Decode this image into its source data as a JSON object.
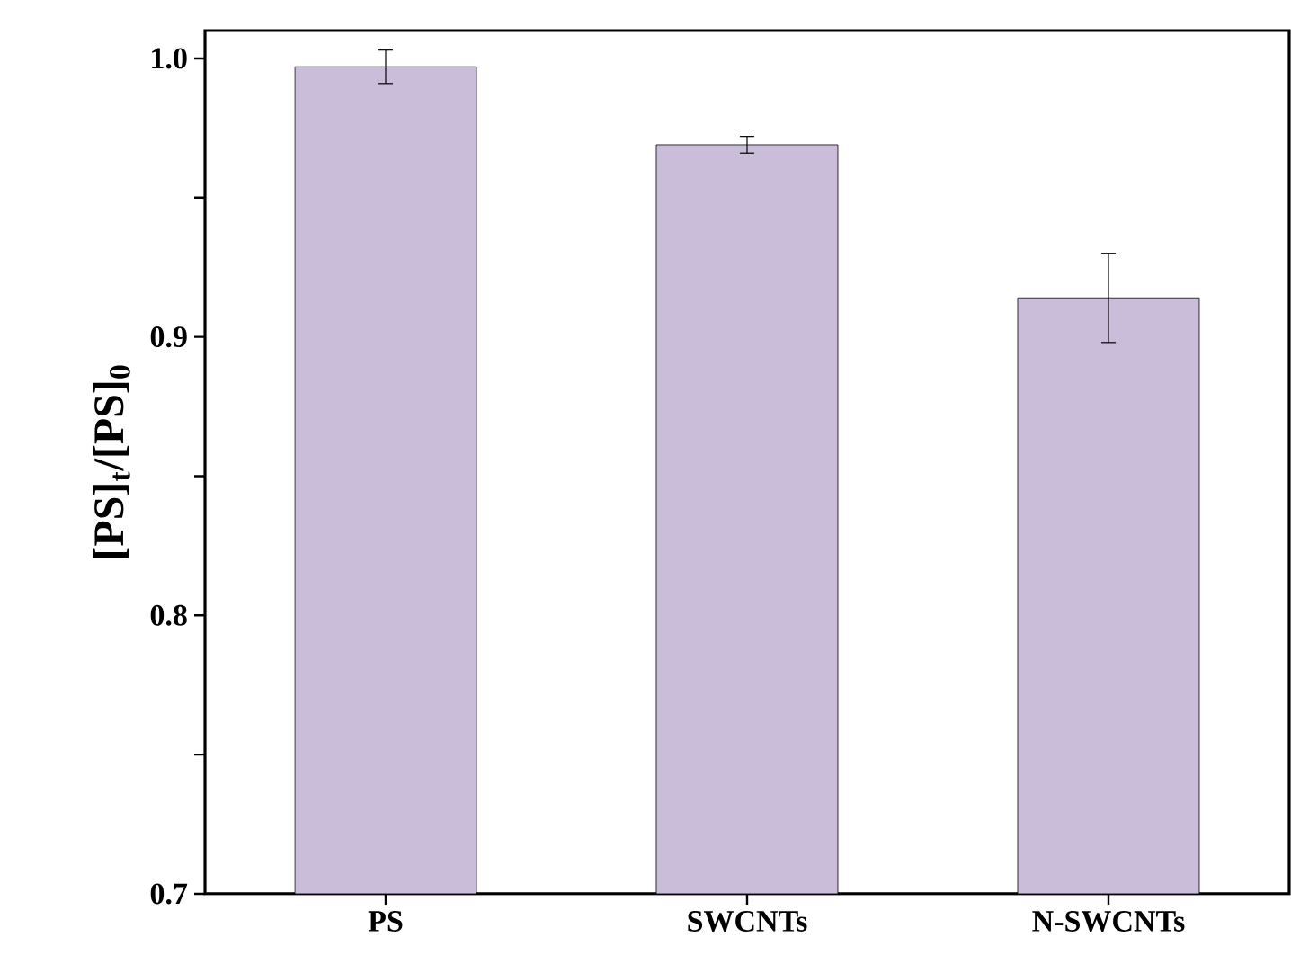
{
  "chart_data": {
    "type": "bar",
    "ylabel": "[PS]$_{t}$/[PS]$_{0}$",
    "categories": [
      "PS",
      "SWCNTs",
      "N-SWCNTs"
    ],
    "values": [
      0.997,
      0.969,
      0.914
    ],
    "errors": [
      0.006,
      0.003,
      0.016
    ],
    "color": "#c9bdda",
    "ylim": [
      0.7,
      1.01
    ],
    "yticks": [
      0.7,
      {
        "value": 0.75,
        "label": null
      },
      0.8,
      {
        "value": 0.85,
        "label": null
      },
      0.9,
      {
        "value": 0.95,
        "label": null
      },
      {
        "value": 1.0,
        "label": "1.0"
      }
    ]
  }
}
